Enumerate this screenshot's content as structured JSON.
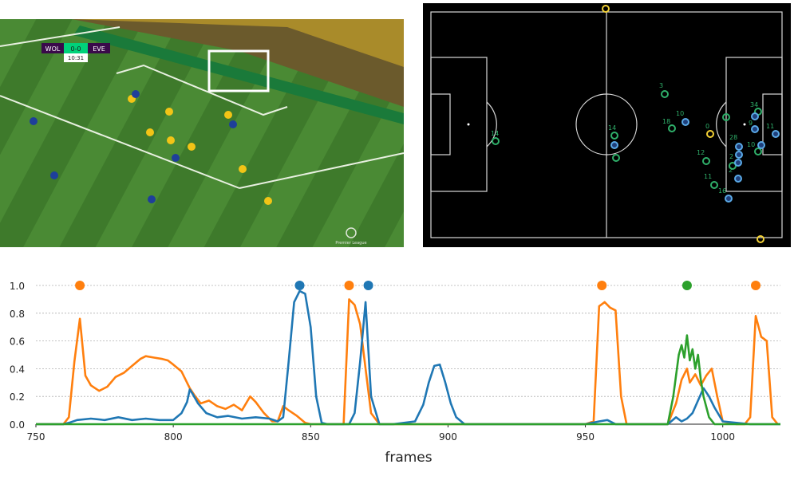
{
  "broadcast": {
    "home": "WOL",
    "score": "0-0",
    "away": "EVE",
    "clock": "10:31",
    "watermark_text": "Premier League"
  },
  "tracking": {
    "player_numbers": [
      "3",
      "10",
      "18",
      "0",
      "14",
      "2",
      "34",
      "9",
      "28",
      "11",
      "10",
      "12",
      "2",
      "11",
      "16",
      "14"
    ]
  },
  "chart_data": {
    "type": "line",
    "xlabel": "frames",
    "ylabel": "",
    "xlim": [
      750,
      1021
    ],
    "ylim": [
      0,
      1.0
    ],
    "xticks": [
      750,
      800,
      850,
      900,
      950,
      1000
    ],
    "yticks": [
      0.0,
      0.2,
      0.4,
      0.6,
      0.8,
      1.0
    ],
    "ytick_labels": [
      "0.0",
      "0.2",
      "0.4",
      "0.6",
      "0.8",
      "1.0"
    ],
    "grid": "horizontal dotted",
    "markers": [
      {
        "x": 766,
        "y": 1.0,
        "color": "#ff7f0e"
      },
      {
        "x": 846,
        "y": 1.0,
        "color": "#1f77b4"
      },
      {
        "x": 864,
        "y": 1.0,
        "color": "#ff7f0e"
      },
      {
        "x": 871,
        "y": 1.0,
        "color": "#1f77b4"
      },
      {
        "x": 956,
        "y": 1.0,
        "color": "#ff7f0e"
      },
      {
        "x": 987,
        "y": 1.0,
        "color": "#2ca02c"
      },
      {
        "x": 1012,
        "y": 1.0,
        "color": "#ff7f0e"
      }
    ],
    "series": [
      {
        "name": "orange",
        "color": "#ff7f0e",
        "x": [
          750,
          760,
          762,
          764,
          766,
          768,
          770,
          773,
          776,
          779,
          782,
          785,
          788,
          790,
          793,
          796,
          798,
          800,
          803,
          806,
          808,
          810,
          813,
          816,
          819,
          822,
          825,
          828,
          830,
          833,
          836,
          838,
          840,
          842,
          845,
          848,
          850,
          852,
          855,
          858,
          860,
          862,
          864,
          866,
          868,
          870,
          872,
          875,
          880,
          890,
          900,
          920,
          940,
          950,
          953,
          955,
          957,
          959,
          961,
          963,
          965,
          970,
          980,
          983,
          985,
          987,
          988,
          990,
          992,
          994,
          996,
          998,
          1000,
          1005,
          1008,
          1010,
          1012,
          1014,
          1016,
          1018,
          1020
        ],
        "values": [
          0,
          0,
          0.05,
          0.45,
          0.76,
          0.35,
          0.28,
          0.24,
          0.27,
          0.34,
          0.37,
          0.42,
          0.47,
          0.49,
          0.48,
          0.47,
          0.46,
          0.43,
          0.38,
          0.26,
          0.2,
          0.15,
          0.17,
          0.13,
          0.11,
          0.14,
          0.1,
          0.2,
          0.16,
          0.08,
          0.02,
          0.02,
          0.13,
          0.1,
          0.06,
          0.01,
          0.0,
          0.0,
          0.0,
          0.0,
          0.0,
          0.0,
          0.9,
          0.86,
          0.72,
          0.4,
          0.08,
          0.0,
          0.0,
          0.0,
          0.0,
          0.0,
          0.0,
          0.0,
          0.02,
          0.85,
          0.88,
          0.84,
          0.82,
          0.2,
          0.0,
          0.0,
          0.0,
          0.15,
          0.32,
          0.4,
          0.3,
          0.36,
          0.28,
          0.35,
          0.4,
          0.2,
          0.02,
          0.0,
          0.0,
          0.05,
          0.78,
          0.63,
          0.6,
          0.05,
          0.0
        ]
      },
      {
        "name": "blue",
        "color": "#1f77b4",
        "x": [
          750,
          760,
          762,
          765,
          770,
          775,
          780,
          785,
          790,
          795,
          800,
          803,
          805,
          806,
          807,
          809,
          812,
          816,
          820,
          825,
          830,
          835,
          838,
          840,
          842,
          844,
          846,
          848,
          850,
          852,
          854,
          856,
          858,
          860,
          862,
          864,
          866,
          868,
          870,
          872,
          875,
          880,
          888,
          891,
          893,
          895,
          897,
          899,
          901,
          903,
          906,
          910,
          930,
          950,
          955,
          958,
          961,
          965,
          970,
          980,
          983,
          985,
          987,
          989,
          991,
          993,
          995,
          997,
          1000,
          1010,
          1021
        ],
        "values": [
          0,
          0,
          0.01,
          0.03,
          0.04,
          0.03,
          0.05,
          0.03,
          0.04,
          0.03,
          0.03,
          0.08,
          0.16,
          0.25,
          0.22,
          0.15,
          0.08,
          0.05,
          0.06,
          0.04,
          0.05,
          0.04,
          0.02,
          0.05,
          0.45,
          0.88,
          0.96,
          0.94,
          0.7,
          0.2,
          0.01,
          0.0,
          0.0,
          0.0,
          0.0,
          0.0,
          0.08,
          0.45,
          0.88,
          0.2,
          0.0,
          0.0,
          0.02,
          0.14,
          0.3,
          0.42,
          0.43,
          0.3,
          0.15,
          0.05,
          0.0,
          0.0,
          0.0,
          0.0,
          0.02,
          0.03,
          0.0,
          0.0,
          0.0,
          0.0,
          0.05,
          0.02,
          0.04,
          0.08,
          0.17,
          0.26,
          0.2,
          0.12,
          0.02,
          0.0,
          0.0
        ]
      },
      {
        "name": "green",
        "color": "#2ca02c",
        "x": [
          750,
          800,
          850,
          900,
          950,
          980,
          982,
          984,
          985,
          986,
          987,
          988,
          989,
          990,
          991,
          992,
          993,
          995,
          997,
          999,
          1000,
          1010,
          1021
        ],
        "values": [
          0,
          0,
          0,
          0,
          0,
          0,
          0.2,
          0.5,
          0.57,
          0.48,
          0.64,
          0.46,
          0.54,
          0.4,
          0.5,
          0.32,
          0.2,
          0.05,
          0.0,
          0.0,
          0.0,
          0.0,
          0.0
        ]
      }
    ]
  }
}
